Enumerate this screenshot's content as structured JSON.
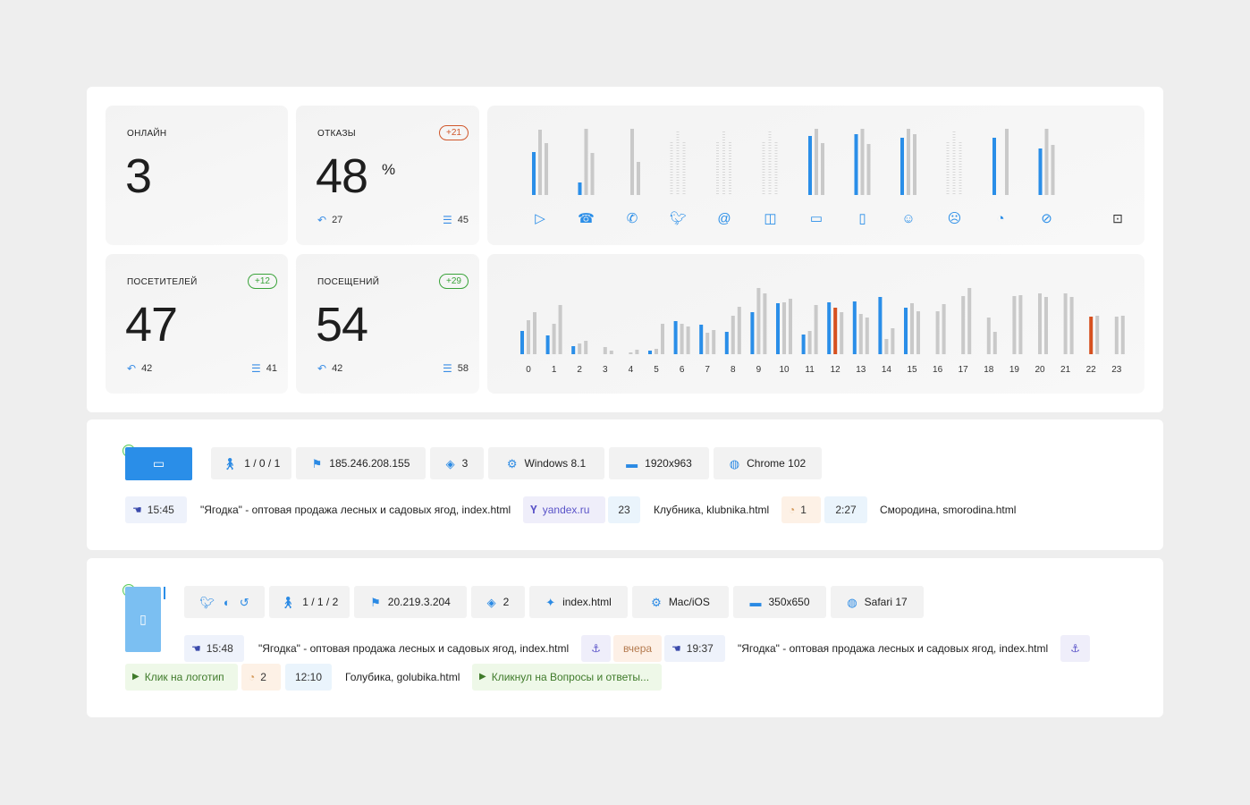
{
  "stats": {
    "online": {
      "label": "ОНЛАЙН",
      "value": "3"
    },
    "bounces": {
      "label": "ОТКАЗЫ",
      "value": "48",
      "unit": "%",
      "badge": "+21",
      "returning": "27",
      "pages": "45"
    },
    "visitors": {
      "label": "ПОСЕТИТЕЛЕЙ",
      "value": "47",
      "badge": "+12",
      "returning": "42",
      "pages": "41"
    },
    "visits": {
      "label": "ПОСЕЩЕНИЙ",
      "value": "54",
      "badge": "+29",
      "returning": "42",
      "pages": "58"
    }
  },
  "colors": {
    "blue": "#2a8ee8",
    "gray": "#c9c9c9",
    "green": "#2aa52a",
    "orange": "#d6501f",
    "accent_badge_red": "#d0572b",
    "accent_badge_green": "#3aa33a"
  },
  "chart_data": [
    {
      "type": "bar",
      "categories": [
        "direct-icon",
        "phone-icon",
        "whatsapp-icon",
        "twitter-icon",
        "email-icon",
        "ads-icon",
        "desktop-icon",
        "mobile-icon",
        "user-icon",
        "user-x-icon",
        "cookie-icon",
        "no-cookie-icon"
      ],
      "series": [
        {
          "color": "blue",
          "values": [
            48,
            14,
            0,
            0,
            0,
            0,
            66,
            68,
            64,
            0,
            64,
            52
          ]
        },
        {
          "color": "gray",
          "values": [
            73,
            74,
            74,
            0,
            0,
            0,
            74,
            74,
            74,
            0,
            0,
            74
          ]
        },
        {
          "color": "gray",
          "values": [
            58,
            47,
            37,
            0,
            0,
            0,
            58,
            57,
            68,
            0,
            74,
            56
          ]
        }
      ],
      "highlights": {
        "10": {
          "series": 1,
          "color": "green"
        }
      }
    },
    {
      "type": "bar",
      "categories": [
        "0",
        "1",
        "2",
        "3",
        "4",
        "5",
        "6",
        "7",
        "8",
        "9",
        "10",
        "11",
        "12",
        "13",
        "14",
        "15",
        "16",
        "17",
        "18",
        "19",
        "20",
        "21",
        "22",
        "23"
      ],
      "series": [
        {
          "color": "blue",
          "values": [
            26,
            21,
            9,
            0,
            0,
            4,
            37,
            33,
            25,
            47,
            57,
            22,
            58,
            59,
            64,
            52,
            0,
            0,
            0,
            0,
            0,
            0,
            0,
            0
          ]
        },
        {
          "color": "gray",
          "values": [
            38,
            34,
            12,
            8,
            2,
            6,
            34,
            24,
            43,
            74,
            58,
            26,
            52,
            45,
            17,
            57,
            48,
            65,
            41,
            65,
            68,
            68,
            42,
            42
          ]
        },
        {
          "color": "gray",
          "values": [
            47,
            55,
            15,
            4,
            5,
            34,
            31,
            27,
            53,
            68,
            62,
            55,
            47,
            41,
            29,
            48,
            56,
            74,
            25,
            66,
            64,
            64,
            43,
            43
          ]
        }
      ],
      "highlights": {
        "12": {
          "series": 1,
          "color": "orange"
        },
        "22": {
          "series": 1,
          "color": "orange"
        }
      }
    }
  ],
  "session1": {
    "pages": "1 / 0 / 1",
    "ip": "185.246.208.155",
    "depth": "3",
    "os": "Windows 8.1",
    "resolution": "1920x963",
    "browser": "Chrome 102",
    "time_in": "15:45",
    "entry_page": "\"Ягодка\" - оптовая продажа лесных и садовых ягод, index.html",
    "source": "yandex.ru",
    "source_count": "23",
    "page2": "Клубника, klubnika.html",
    "cookie_count": "1",
    "duration": "2:27",
    "page3": "Смородина, smorodina.html"
  },
  "session2": {
    "pages": "1 / 1 / 2",
    "ip": "20.219.3.204",
    "depth": "2",
    "entry": "index.html",
    "os": "Mac/iOS",
    "resolution": "350x650",
    "browser": "Safari 17",
    "time_in": "15:48",
    "entry_page": "\"Ягодка\" - оптовая продажа лесных и садовых ягод, index.html",
    "yesterday": "вчера",
    "time_prev": "19:37",
    "entry_page2": "\"Ягодка\" - оптовая продажа лесных и садовых ягод, index.html",
    "event1": "Клик на логотип",
    "cookie_count": "2",
    "duration": "12:10",
    "page2": "Голубика, golubika.html",
    "event2": "Кликнул на Вопросы и ответы..."
  }
}
